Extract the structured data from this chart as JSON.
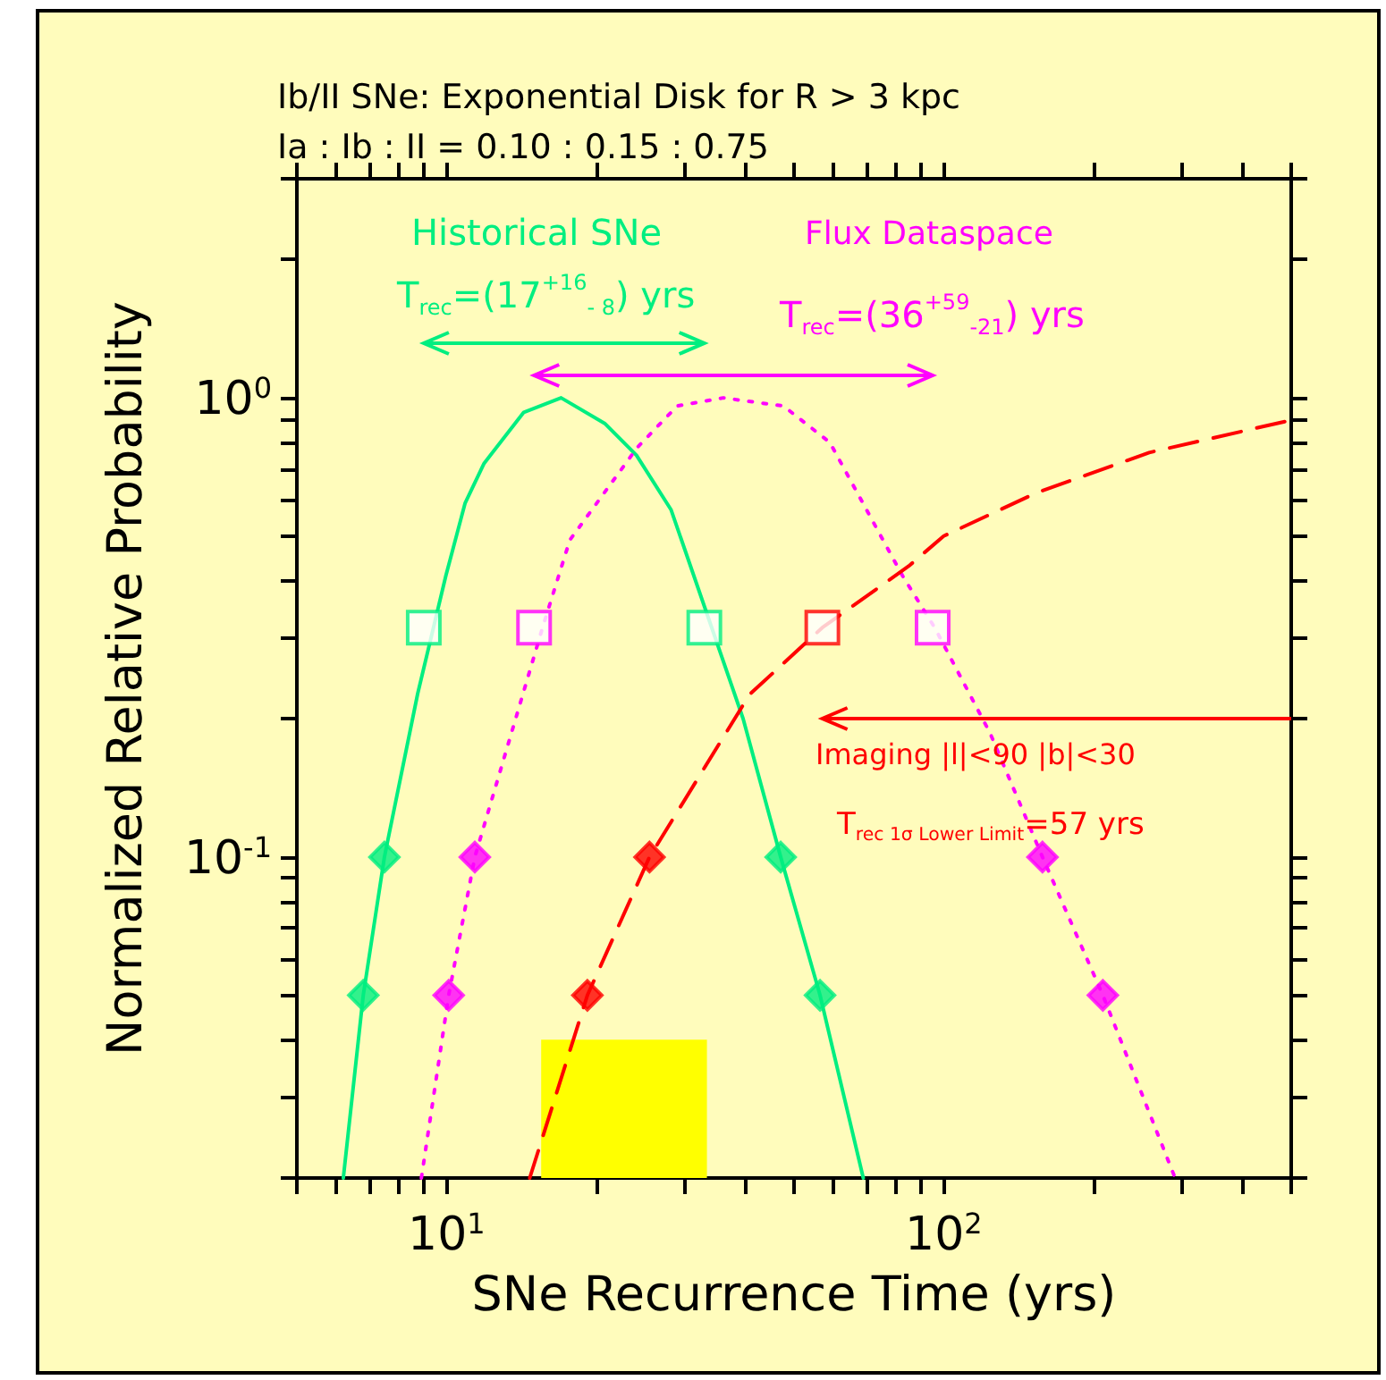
{
  "chart_data": {
    "type": "line",
    "title": "Ib/II SNe: Exponential Disk for R > 3 kpc",
    "subtitle": "Ia : Ib : II = 0.10 : 0.15 : 0.75",
    "xlabel": "SNe Recurrence Time (yrs)",
    "ylabel": "Normalized Relative Probability",
    "log": "xy",
    "xlim": [
      5,
      500
    ],
    "ylim": [
      0.02,
      3
    ],
    "xticks": [
      {
        "value": 5,
        "label": null
      },
      {
        "value": 6,
        "label": null
      },
      {
        "value": 7,
        "label": null
      },
      {
        "value": 8,
        "label": null
      },
      {
        "value": 9,
        "label": null
      },
      {
        "value": 10,
        "label": "10$^{1}$"
      },
      {
        "value": 20,
        "label": null
      },
      {
        "value": 30,
        "label": null
      },
      {
        "value": 40,
        "label": null
      },
      {
        "value": 50,
        "label": null
      },
      {
        "value": 60,
        "label": null
      },
      {
        "value": 70,
        "label": null
      },
      {
        "value": 80,
        "label": null
      },
      {
        "value": 90,
        "label": null
      },
      {
        "value": 100,
        "label": "10$^{2}$"
      },
      {
        "value": 200,
        "label": null
      },
      {
        "value": 300,
        "label": null
      },
      {
        "value": 400,
        "label": null
      },
      {
        "value": 500,
        "label": null
      }
    ],
    "yticks": [
      {
        "value": 0.02,
        "label": null
      },
      {
        "value": 0.03,
        "label": null
      },
      {
        "value": 0.04,
        "label": null
      },
      {
        "value": 0.05,
        "label": null
      },
      {
        "value": 0.06,
        "label": null
      },
      {
        "value": 0.07,
        "label": null
      },
      {
        "value": 0.08,
        "label": null
      },
      {
        "value": 0.09,
        "label": null
      },
      {
        "value": 0.1,
        "label": "10$^{-1}$"
      },
      {
        "value": 0.2,
        "label": null
      },
      {
        "value": 0.3,
        "label": null
      },
      {
        "value": 0.4,
        "label": null
      },
      {
        "value": 0.5,
        "label": null
      },
      {
        "value": 0.6,
        "label": null
      },
      {
        "value": 0.7,
        "label": null
      },
      {
        "value": 0.8,
        "label": null
      },
      {
        "value": 0.9,
        "label": null
      },
      {
        "value": 1,
        "label": "10$^{0}$"
      },
      {
        "value": 2,
        "label": null
      },
      {
        "value": 3,
        "label": null
      }
    ],
    "annotations": [
      "Historical SNe",
      "T$_{rec}$=(17$^{+16}$$_{- 8}$) yrs",
      "Flux Dataspace",
      "T$_{rec}$=(36$^{+59}$$_{-21}$) yrs",
      "Imaging |l|<90 |b|<30",
      "T$_{rec 1σ Lower Limit}$=57 yrs"
    ],
    "series": [
      {
        "type": "area",
        "color": "#ffff00",
        "x": [
          15.5,
          33.4
        ],
        "values": [
          0.04,
          0.04
        ]
      },
      {
        "type": "line",
        "color": "#00ee80",
        "line_style": "solid",
        "x": [
          6.2,
          6.8,
          7.5,
          8.75,
          9.97,
          10.9,
          11.9,
          14.3,
          17,
          20.8,
          24.1,
          28.3,
          39.5,
          47,
          56.4,
          68.9
        ],
        "values": [
          0.02,
          0.05,
          0.1,
          0.227,
          0.41,
          0.59,
          0.72,
          0.93,
          1,
          0.88,
          0.75,
          0.57,
          0.2,
          0.1,
          0.05,
          0.02
        ]
      },
      {
        "type": "line",
        "color": "#ff00ff",
        "line_style": "dotted",
        "x": [
          8.9,
          10.1,
          11.4,
          15.6,
          17.7,
          24.2,
          29.1,
          36,
          47.6,
          59,
          82.6,
          95.9,
          124,
          158,
          209,
          292
        ],
        "values": [
          0.02,
          0.05,
          0.1,
          0.316,
          0.49,
          0.78,
          0.96,
          1,
          0.96,
          0.8,
          0.41,
          0.316,
          0.186,
          0.1,
          0.05,
          0.02
        ]
      },
      {
        "type": "line",
        "color": "#ff0000",
        "line_style": "dashed",
        "x": [
          14.7,
          19.2,
          25.6,
          40.7,
          57,
          85,
          100,
          153,
          259,
          490,
          500
        ],
        "values": [
          0.02,
          0.05,
          0.1,
          0.226,
          0.316,
          0.43,
          0.5,
          0.62,
          0.76,
          0.89,
          0.9
        ]
      },
      {
        "type": "scatter",
        "color": "#00ee80",
        "marker": "square",
        "x": [
          9,
          33
        ],
        "values": [
          0.316,
          0.316
        ]
      },
      {
        "type": "scatter",
        "color": "#00ee80",
        "marker": "diamond",
        "x": [
          7.5,
          47
        ],
        "values": [
          0.1,
          0.1
        ]
      },
      {
        "type": "scatter",
        "color": "#00ee80",
        "marker": "diamond",
        "x": [
          6.8,
          56.4
        ],
        "values": [
          0.05,
          0.05
        ]
      },
      {
        "type": "scatter",
        "color": "#ff00ff",
        "marker": "square",
        "x": [
          15,
          95
        ],
        "values": [
          0.316,
          0.316
        ]
      },
      {
        "type": "scatter",
        "color": "#ff00ff",
        "marker": "diamond",
        "x": [
          11.4,
          158
        ],
        "values": [
          0.1,
          0.1
        ]
      },
      {
        "type": "scatter",
        "color": "#ff00ff",
        "marker": "diamond",
        "x": [
          10.1,
          209
        ],
        "values": [
          0.05,
          0.05
        ]
      },
      {
        "type": "scatter",
        "color": "#ff0000",
        "marker": "square",
        "x": [
          57
        ],
        "values": [
          0.316
        ]
      },
      {
        "type": "scatter",
        "color": "#ff0000",
        "marker": "diamond",
        "x": [
          25.6
        ],
        "values": [
          0.1
        ]
      },
      {
        "type": "scatter",
        "color": "#ff0000",
        "marker": "diamond",
        "x": [
          19.2
        ],
        "values": [
          0.05
        ]
      }
    ]
  }
}
